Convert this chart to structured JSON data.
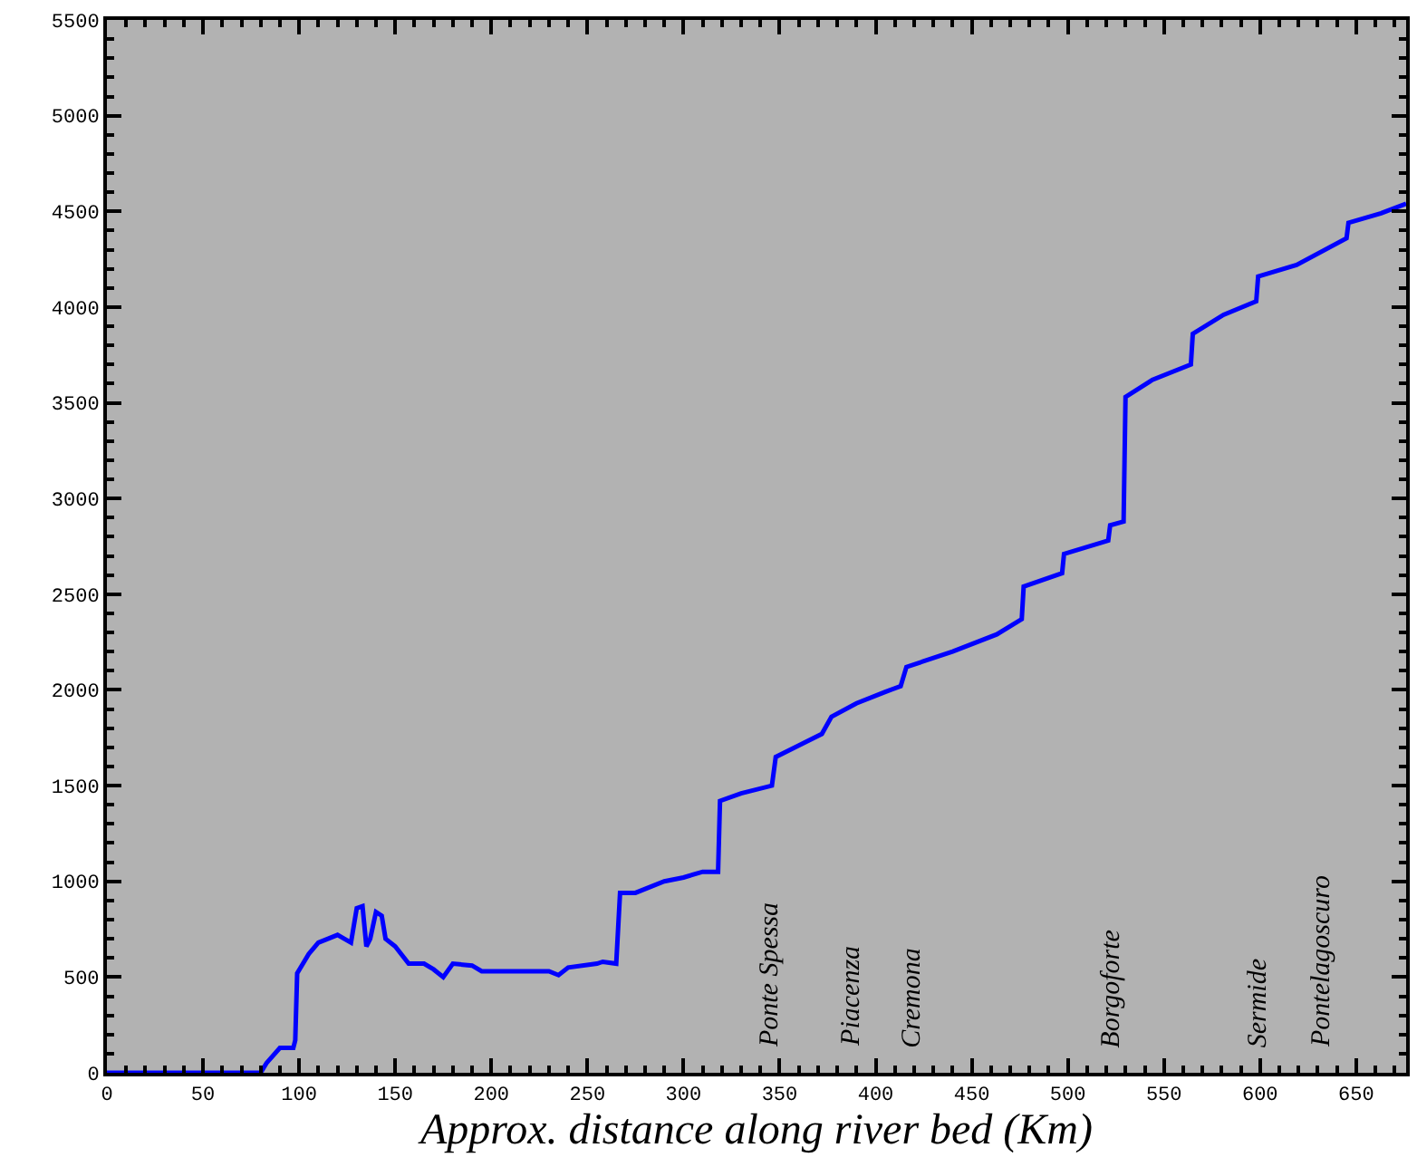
{
  "chart_data": {
    "type": "line",
    "xlabel": "Approx. distance along river bed (Km)",
    "x": [
      0,
      80,
      83,
      90,
      97,
      98,
      99,
      105,
      110,
      115,
      120,
      127,
      130,
      133,
      135,
      137,
      140,
      143,
      145,
      150,
      157,
      165,
      170,
      175,
      180,
      190,
      195,
      230,
      235,
      240,
      255,
      258,
      265,
      267,
      275,
      290,
      300,
      310,
      318,
      319,
      330,
      346,
      348,
      360,
      372,
      377,
      390,
      405,
      413,
      416,
      440,
      463,
      476,
      477,
      497,
      498,
      521,
      522,
      529,
      530,
      544,
      564,
      565,
      581,
      598,
      599,
      619,
      645,
      646,
      663,
      676
    ],
    "series": [
      {
        "color": "#0000ff",
        "values": [
          0,
          0,
          50,
          130,
          130,
          170,
          520,
          620,
          680,
          700,
          720,
          680,
          860,
          870,
          660,
          700,
          840,
          820,
          700,
          660,
          570,
          570,
          540,
          500,
          570,
          560,
          530,
          530,
          510,
          550,
          570,
          580,
          570,
          940,
          940,
          1000,
          1020,
          1050,
          1050,
          1420,
          1460,
          1500,
          1650,
          1710,
          1770,
          1860,
          1930,
          1990,
          2020,
          2120,
          2200,
          2290,
          2370,
          2540,
          2610,
          2710,
          2780,
          2860,
          2880,
          3530,
          3620,
          3700,
          3860,
          3960,
          4030,
          4160,
          4220,
          4360,
          4440,
          4490,
          4540
        ]
      }
    ],
    "xlim": [
      0,
      676
    ],
    "xticks": [
      0,
      50,
      100,
      150,
      200,
      250,
      300,
      350,
      400,
      450,
      500,
      550,
      600,
      650
    ],
    "ylim": [
      0,
      5500
    ],
    "yticks": [
      0,
      500,
      1000,
      1500,
      2000,
      2500,
      3000,
      3500,
      4000,
      4500,
      5000,
      5500
    ],
    "grid": false,
    "marker": "none",
    "line_style": "solid",
    "annotations": [
      "Ponte Spessa",
      "Piacenza",
      "Cremona",
      "Borgoforte",
      "Sermide",
      "Pontelagoscuro"
    ]
  }
}
